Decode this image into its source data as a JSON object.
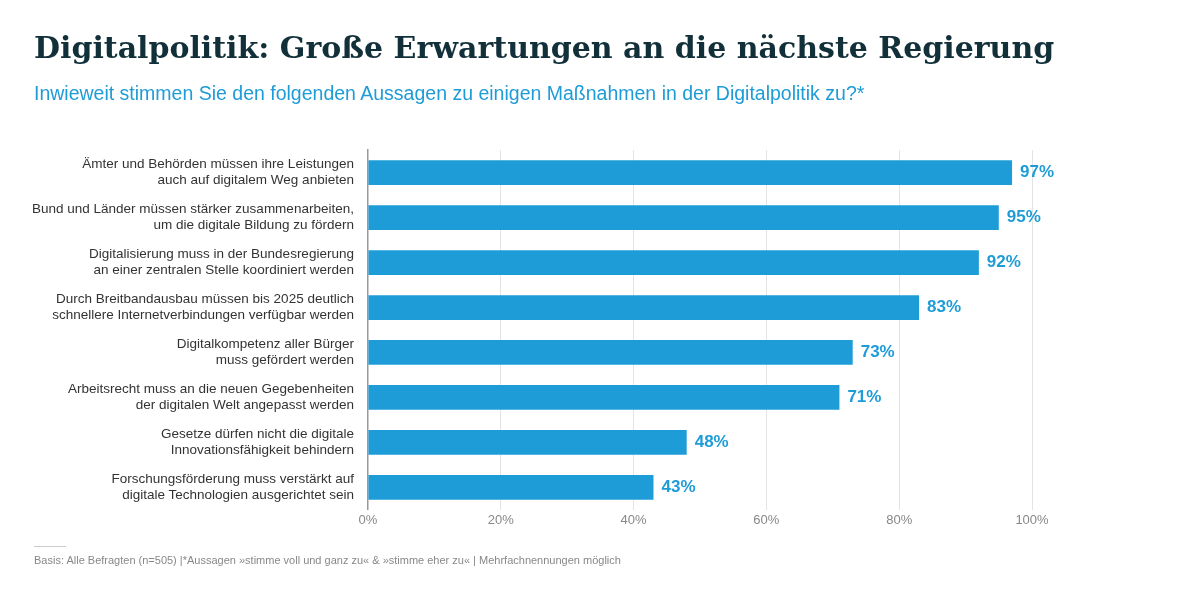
{
  "chart_data": {
    "type": "bar",
    "orientation": "horizontal",
    "title": "Digitalpolitik: Große Erwartungen an die nächste Regierung",
    "subtitle": "Inwieweit stimmen Sie den folgenden Aussagen zu einigen Maßnahmen in der Digitalpolitik zu?*",
    "categories": [
      "Ämter und Behörden müssen ihre Leistungen\nauch auf digitalem Weg anbieten",
      "Bund und Länder müssen stärker zusammenarbeiten,\num die digitale Bildung zu fördern",
      "Digitalisierung muss in der Bundesregierung\nan einer zentralen Stelle koordiniert werden",
      "Durch Breitbandausbau müssen bis 2025 deutlich\nschnellere Internetverbindungen verfügbar werden",
      "Digitalkompetenz aller Bürger\nmuss gefördert werden",
      "Arbeitsrecht muss an die neuen Gegebenheiten\nder digitalen Welt angepasst werden",
      "Gesetze dürfen nicht die digitale\nInnovationsfähigkeit behindern",
      "Forschungsförderung muss verstärkt auf\ndigitale Technologien ausgerichtet sein"
    ],
    "values": [
      97,
      95,
      92,
      83,
      73,
      71,
      48,
      43
    ],
    "value_labels": [
      "97%",
      "95%",
      "92%",
      "83%",
      "73%",
      "71%",
      "48%",
      "43%"
    ],
    "color": "#1e9cd7",
    "xlim": [
      0,
      100
    ],
    "xticks": [
      {
        "value": 0,
        "label": "0%"
      },
      {
        "value": 20,
        "label": "20%"
      },
      {
        "value": 40,
        "label": "40%"
      },
      {
        "value": 60,
        "label": "60%"
      },
      {
        "value": 80,
        "label": "80%"
      },
      {
        "value": 100,
        "label": "100%"
      }
    ],
    "grid": "x",
    "legend": false,
    "annotations": [
      "Basis: Alle Befragten (n=505) |*Aussagen »stimme voll und ganz zu« & »stimme eher zu« | Mehrfachnennungen möglich"
    ]
  }
}
